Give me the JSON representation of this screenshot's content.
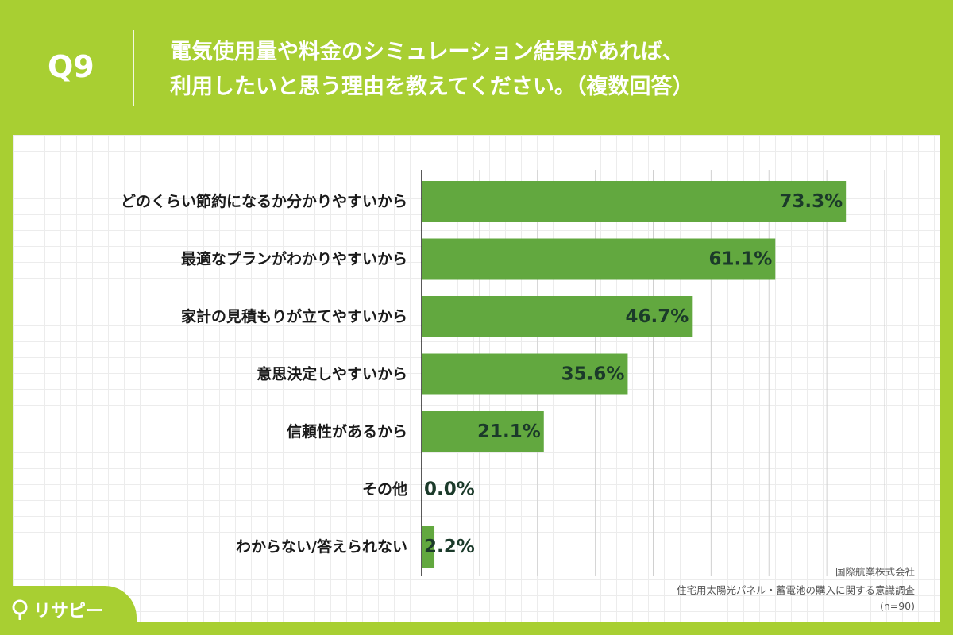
{
  "question": {
    "number": "Q9",
    "title_lines": [
      "電気使用量や料金のシミュレーション結果があれば、",
      "利用したいと思う理由を教えてください。（複数回答）"
    ]
  },
  "source": {
    "company": "国際航業株式会社",
    "survey": "住宅用太陽光パネル・蓄電池の購入に関する意識調査",
    "sample": "(n=90)"
  },
  "brand": {
    "name": "リサピー",
    "icon": "pin-icon"
  },
  "colors": {
    "background": "#a8cf32",
    "bar": "#62a83f",
    "value_text": "#1b3a2a"
  },
  "chart_data": {
    "type": "bar",
    "orientation": "horizontal",
    "categories": [
      "どのくらい節約になるか分かりやすいから",
      "最適なプランがわかりやすいから",
      "家計の見積もりが立てやすいから",
      "意思決定しやすいから",
      "信頼性があるから",
      "その他",
      "わからない/答えられない"
    ],
    "values": [
      73.3,
      61.1,
      46.7,
      35.6,
      21.1,
      0.0,
      2.2
    ],
    "value_labels": [
      "73.3%",
      "61.1%",
      "46.7%",
      "35.6%",
      "21.1%",
      "0.0%",
      "2.2%"
    ],
    "xlim": [
      0,
      80
    ],
    "grid": true
  }
}
